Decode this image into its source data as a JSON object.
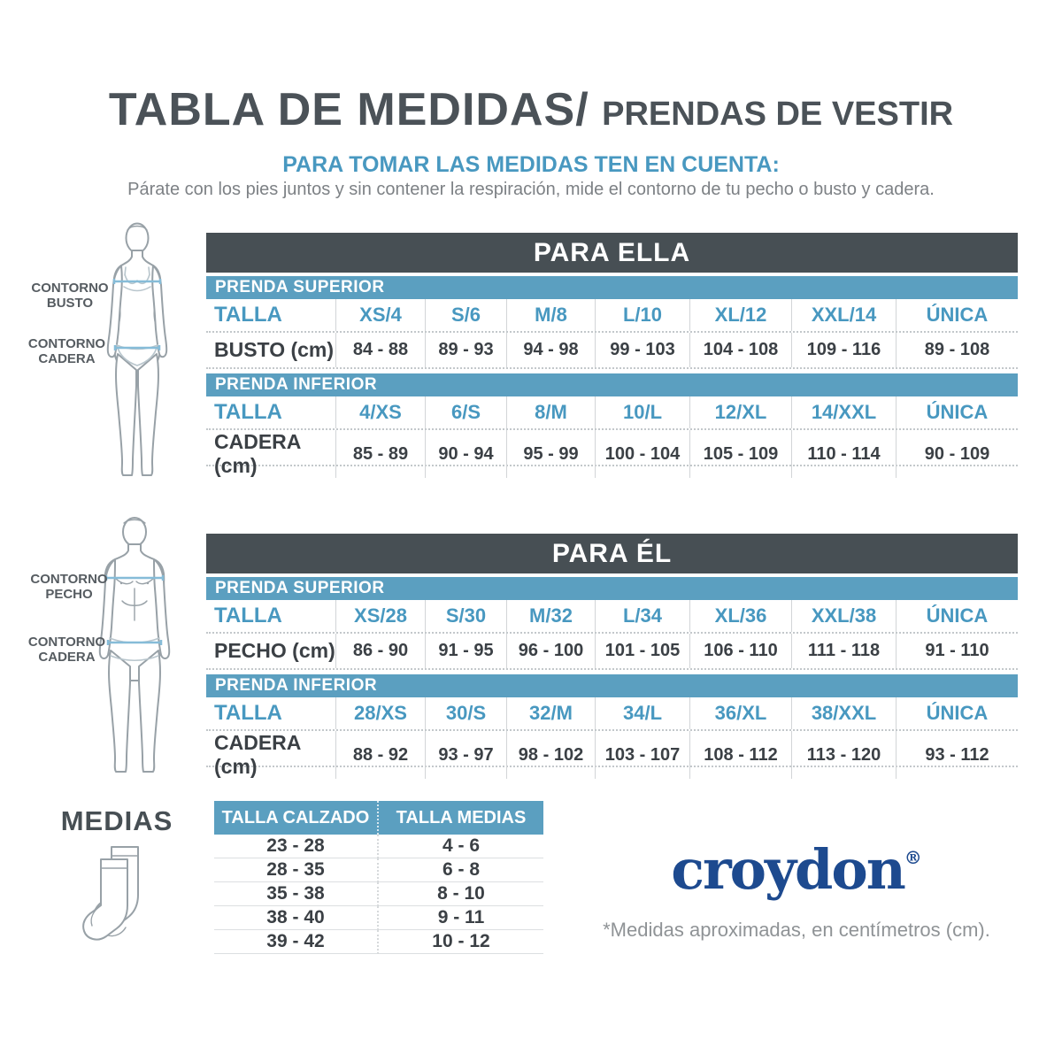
{
  "page": {
    "title_main": "TABLA DE MEDIDAS/",
    "title_sub": "PRENDAS DE VESTIR",
    "subtitle": "PARA TOMAR LAS MEDIDAS TEN EN CUENTA:",
    "description": "Párate con los pies juntos y sin contener la respiración, mide el contorno de tu pecho o busto y cadera.",
    "brand": "croydon",
    "brand_reg": "®",
    "footnote": "*Medidas aproximadas, en centímetros (cm)."
  },
  "colors": {
    "dark": "#474f54",
    "blue": "#5b9fc0",
    "bluetext": "#4898c0",
    "value": "#3b4045",
    "brand": "#1d4a8f"
  },
  "figures": {
    "female": {
      "bust_label_1": "CONTORNO",
      "bust_label_2": "BUSTO",
      "hip_label_1": "CONTORNO",
      "hip_label_2": "CADERA"
    },
    "male": {
      "chest_label_1": "CONTORNO",
      "chest_label_2": "PECHO",
      "hip_label_1": "CONTORNO",
      "hip_label_2": "CADERA"
    },
    "socks_heading": "MEDIAS"
  },
  "tables": {
    "ella": {
      "title": "PARA ELLA",
      "sections": [
        {
          "header": "PRENDA SUPERIOR",
          "size_label": "TALLA",
          "sizes": [
            "XS/4",
            "S/6",
            "M/8",
            "L/10",
            "XL/12",
            "XXL/14",
            "ÚNICA"
          ],
          "measure_label": "BUSTO (cm)",
          "values": [
            "84 - 88",
            "89 - 93",
            "94 - 98",
            "99 - 103",
            "104 - 108",
            "109 - 116",
            "89 - 108"
          ]
        },
        {
          "header": "PRENDA INFERIOR",
          "size_label": "TALLA",
          "sizes": [
            "4/XS",
            "6/S",
            "8/M",
            "10/L",
            "12/XL",
            "14/XXL",
            "ÚNICA"
          ],
          "measure_label": "CADERA (cm)",
          "values": [
            "85 - 89",
            "90 - 94",
            "95 - 99",
            "100 - 104",
            "105 - 109",
            "110 - 114",
            "90 - 109"
          ]
        }
      ]
    },
    "el": {
      "title": "PARA ÉL",
      "sections": [
        {
          "header": "PRENDA SUPERIOR",
          "size_label": "TALLA",
          "sizes": [
            "XS/28",
            "S/30",
            "M/32",
            "L/34",
            "XL/36",
            "XXL/38",
            "ÚNICA"
          ],
          "measure_label": "PECHO (cm)",
          "values": [
            "86 - 90",
            "91 - 95",
            "96 - 100",
            "101 - 105",
            "106 - 110",
            "111 - 118",
            "91 - 110"
          ]
        },
        {
          "header": "PRENDA INFERIOR",
          "size_label": "TALLA",
          "sizes": [
            "28/XS",
            "30/S",
            "32/M",
            "34/L",
            "36/XL",
            "38/XXL",
            "ÚNICA"
          ],
          "measure_label": "CADERA (cm)",
          "values": [
            "88 - 92",
            "93 - 97",
            "98 - 102",
            "103 - 107",
            "108 - 112",
            "113 - 120",
            "93 - 112"
          ]
        }
      ]
    },
    "medias": {
      "headers": [
        "TALLA CALZADO",
        "TALLA MEDIAS"
      ],
      "rows": [
        [
          "23 - 28",
          "4 - 6"
        ],
        [
          "28 - 35",
          "6 - 8"
        ],
        [
          "35 - 38",
          "8 - 10"
        ],
        [
          "38 - 40",
          "9 - 11"
        ],
        [
          "39 - 42",
          "10 - 12"
        ]
      ]
    }
  }
}
